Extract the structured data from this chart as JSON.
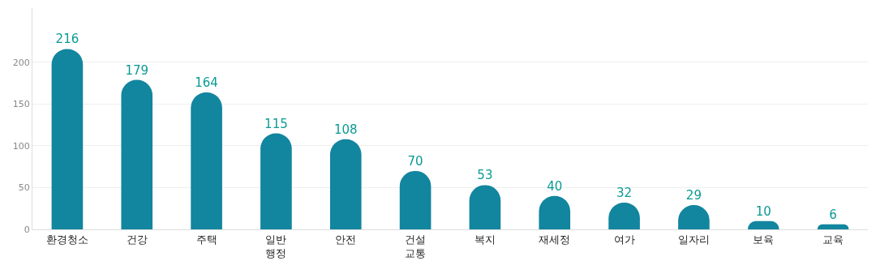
{
  "chart_data": {
    "type": "bar",
    "categories": [
      "환경청소",
      "건강",
      "주택",
      "일반\n행정",
      "안전",
      "건설\n교통",
      "복지",
      "재세정",
      "여가",
      "일자리",
      "보육",
      "교육"
    ],
    "values": [
      216,
      179,
      164,
      115,
      108,
      70,
      53,
      40,
      32,
      29,
      10,
      6
    ],
    "color": "#12859f",
    "ylim": [
      0,
      265
    ],
    "yticks": [
      0,
      50,
      100,
      150,
      200
    ],
    "grid": "y",
    "data_labels": true
  }
}
